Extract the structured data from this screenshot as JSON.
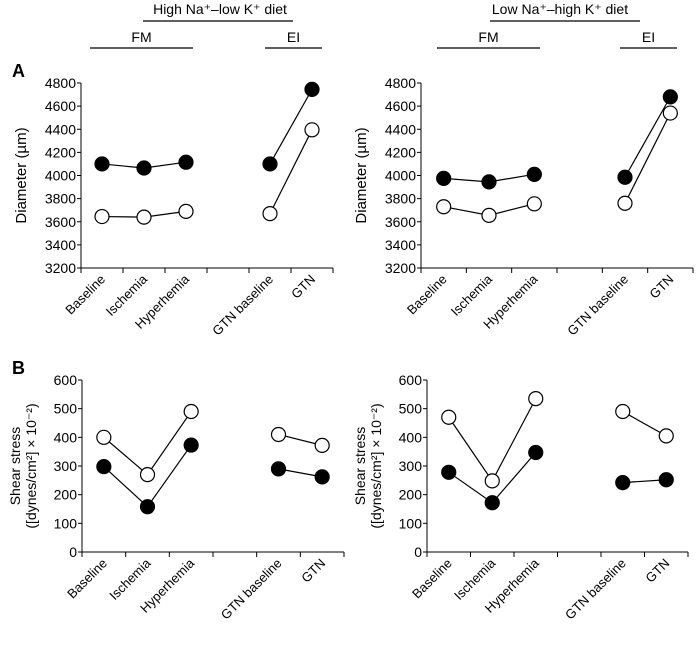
{
  "chart_data": [
    {
      "type": "line",
      "panel": "A",
      "title": "High Na⁺–low K⁺ diet",
      "group_labels": [
        "FM",
        "EI"
      ],
      "ylabel": "Diameter (µm)",
      "ylim": [
        3200,
        4800
      ],
      "yticks": [
        3200,
        3400,
        3600,
        3800,
        4000,
        4200,
        4400,
        4600,
        4800
      ],
      "categories": [
        "Baseline",
        "Ischemia",
        "Hyperhemia",
        "GTN baseline",
        "GTN"
      ],
      "series": [
        {
          "marker": "filled",
          "values": [
            4100,
            4065,
            4115,
            4100,
            4745
          ]
        },
        {
          "marker": "open",
          "values": [
            3645,
            3640,
            3690,
            3670,
            4395
          ]
        }
      ]
    },
    {
      "type": "line",
      "panel": "",
      "title": "Low Na⁺–high K⁺ diet",
      "group_labels": [
        "FM",
        "EI"
      ],
      "ylabel": "Diameter (µm)",
      "ylim": [
        3200,
        4800
      ],
      "yticks": [
        3200,
        3400,
        3600,
        3800,
        4000,
        4200,
        4400,
        4600,
        4800
      ],
      "categories": [
        "Baseline",
        "Ischemia",
        "Hyperhemia",
        "GTN baseline",
        "GTN"
      ],
      "series": [
        {
          "marker": "filled",
          "values": [
            3975,
            3945,
            4010,
            3985,
            4680
          ]
        },
        {
          "marker": "open",
          "values": [
            3730,
            3655,
            3755,
            3760,
            4540
          ]
        }
      ]
    },
    {
      "type": "line",
      "panel": "B",
      "title": "",
      "ylabel": "Shear stress",
      "ylabel2": "([dynes/cm²] × 10⁻²)",
      "ylim": [
        0,
        600
      ],
      "yticks": [
        0,
        100,
        200,
        300,
        400,
        500,
        600
      ],
      "categories": [
        "Baseline",
        "Ischemia",
        "Hyperhemia",
        "GTN baseline",
        "GTN"
      ],
      "series": [
        {
          "marker": "filled",
          "values": [
            298,
            158,
            373,
            290,
            262
          ]
        },
        {
          "marker": "open",
          "values": [
            400,
            270,
            490,
            410,
            372
          ]
        }
      ]
    },
    {
      "type": "line",
      "panel": "",
      "title": "",
      "ylabel": "Shear stress",
      "ylabel2": "([dynes/cm²] × 10⁻²)",
      "ylim": [
        0,
        600
      ],
      "yticks": [
        0,
        100,
        200,
        300,
        400,
        500,
        600
      ],
      "categories": [
        "Baseline",
        "Ischemia",
        "Hyperhemia",
        "GTN baseline",
        "GTN"
      ],
      "series": [
        {
          "marker": "filled",
          "values": [
            278,
            172,
            347,
            242,
            252
          ]
        },
        {
          "marker": "open",
          "values": [
            470,
            248,
            535,
            490,
            405
          ]
        }
      ]
    }
  ]
}
